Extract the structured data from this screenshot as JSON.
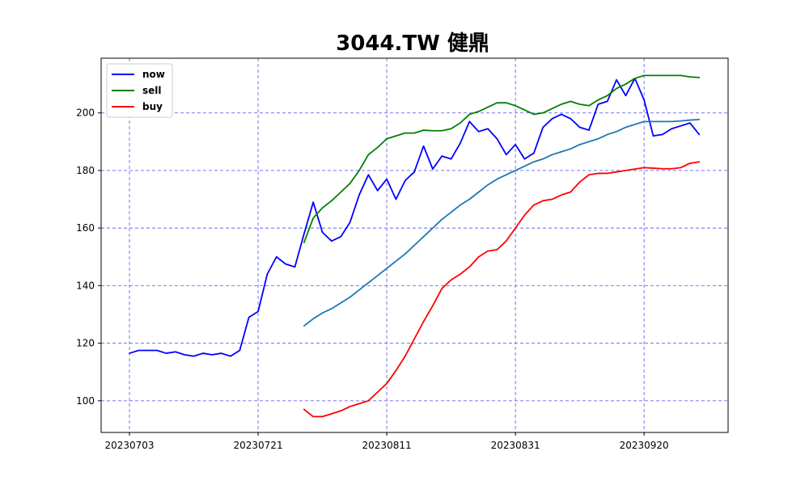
{
  "chart_data": {
    "type": "line",
    "title": "3044.TW 健鼎",
    "xlabel": "",
    "ylabel": "",
    "ylim": [
      89,
      219
    ],
    "grid": true,
    "legend_position": "top-left",
    "x_tick_labels": [
      "20230703",
      "20230721",
      "20230811",
      "20230831",
      "20230920"
    ],
    "x_tick_indices": [
      0,
      14,
      28,
      42,
      56
    ],
    "y_ticks": [
      100,
      120,
      140,
      160,
      180,
      200
    ],
    "series": [
      {
        "name": "now",
        "color": "#0000ff",
        "start_index": 0,
        "values": [
          116.5,
          117.5,
          117.5,
          117.5,
          116.5,
          117.0,
          116.0,
          115.5,
          116.5,
          116.0,
          116.5,
          115.5,
          117.5,
          129.0,
          131.0,
          144.0,
          150.0,
          147.5,
          146.5,
          158.0,
          169.0,
          158.5,
          155.5,
          157.0,
          162.0,
          171.5,
          178.5,
          173.0,
          177.0,
          170.0,
          176.5,
          179.5,
          188.5,
          180.5,
          185.0,
          184.0,
          189.5,
          197.0,
          193.5,
          194.5,
          191.0,
          185.5,
          189.0,
          184.0,
          186.0,
          195.0,
          198.0,
          199.5,
          198.0,
          195.0,
          194.0,
          203.0,
          204.0,
          211.5,
          206.0,
          212.0,
          204.5,
          192.0,
          192.5,
          194.5,
          195.5,
          196.5,
          192.5
        ]
      },
      {
        "name": "sell",
        "color": "#008000",
        "start_index": 19,
        "values": [
          155.0,
          163.5,
          167.0,
          169.5,
          172.5,
          175.5,
          180.0,
          185.5,
          188.0,
          191.0,
          192.0,
          193.0,
          193.0,
          194.0,
          193.8,
          193.8,
          194.5,
          196.5,
          199.5,
          200.5,
          202.0,
          203.5,
          203.5,
          202.5,
          201.0,
          199.5,
          200.0,
          201.5,
          203.0,
          204.0,
          203.0,
          202.5,
          204.5,
          206.0,
          208.5,
          210.0,
          212.0,
          213.0,
          213.0,
          213.0,
          213.0,
          213.0,
          212.5,
          212.3
        ]
      },
      {
        "name": "",
        "color": "#1f77b4",
        "start_index": 19,
        "values": [
          126.0,
          128.5,
          130.5,
          132.0,
          134.0,
          136.0,
          138.5,
          141.0,
          143.5,
          146.0,
          148.5,
          151.0,
          154.0,
          157.0,
          160.0,
          163.0,
          165.5,
          168.0,
          170.0,
          172.5,
          175.0,
          177.0,
          178.5,
          180.0,
          181.5,
          183.0,
          184.0,
          185.5,
          186.5,
          187.5,
          189.0,
          190.0,
          191.0,
          192.5,
          193.5,
          195.0,
          196.0,
          197.0,
          197.0,
          197.0,
          197.0,
          197.2,
          197.5,
          197.7
        ]
      },
      {
        "name": "buy",
        "color": "#ff0000",
        "start_index": 19,
        "values": [
          97.0,
          94.5,
          94.5,
          95.5,
          96.5,
          98.0,
          99.0,
          100.0,
          103.0,
          106.0,
          110.5,
          115.5,
          121.5,
          127.5,
          133.0,
          139.0,
          142.0,
          144.0,
          146.5,
          150.0,
          152.0,
          152.5,
          155.5,
          160.0,
          164.5,
          168.0,
          169.5,
          170.0,
          171.5,
          172.5,
          176.0,
          178.5,
          179.0,
          179.0,
          179.5,
          180.0,
          180.5,
          181.0,
          180.8,
          180.6,
          180.6,
          181.0,
          182.5,
          183.0
        ]
      }
    ]
  }
}
